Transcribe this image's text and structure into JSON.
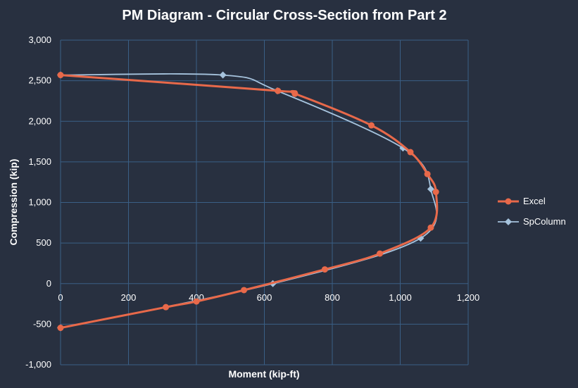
{
  "chart_data": {
    "type": "scatter",
    "title": "PM Diagram - Circular Cross-Section from Part 2",
    "xlabel": "Moment (kip-ft)",
    "ylabel": "Compression (kip)",
    "xlim": [
      0,
      1200
    ],
    "ylim": [
      -1000,
      3000
    ],
    "xticks": [
      0,
      200,
      400,
      600,
      800,
      1000,
      1200
    ],
    "xtick_labels": [
      "0",
      "200",
      "400",
      "600",
      "800",
      "1,000",
      "1,200"
    ],
    "yticks": [
      -1000,
      -500,
      0,
      500,
      1000,
      1500,
      2000,
      2500,
      3000
    ],
    "ytick_labels": [
      "-1,000",
      "-500",
      "0",
      "500",
      "1,000",
      "1,500",
      "2,000",
      "2,500",
      "3,000"
    ],
    "grid": true,
    "legend_position": "right",
    "series": [
      {
        "name": "Excel",
        "color": "#e8694a",
        "marker": "circle",
        "x": [
          0,
          640,
          690,
          915,
          1030,
          1080,
          1105,
          1090,
          940,
          778,
          540,
          400,
          310,
          0
        ],
        "y": [
          2570,
          2375,
          2340,
          1950,
          1620,
          1350,
          1130,
          690,
          370,
          175,
          -80,
          -220,
          -290,
          -545
        ]
      },
      {
        "name": "SpColumn",
        "color": "#a6c3dd",
        "marker": "diamond",
        "x": [
          0,
          478,
          638,
          1008,
          1090,
          1060,
          625,
          0
        ],
        "y": [
          2570,
          2570,
          2375,
          1670,
          1165,
          560,
          0,
          -545
        ]
      }
    ]
  }
}
